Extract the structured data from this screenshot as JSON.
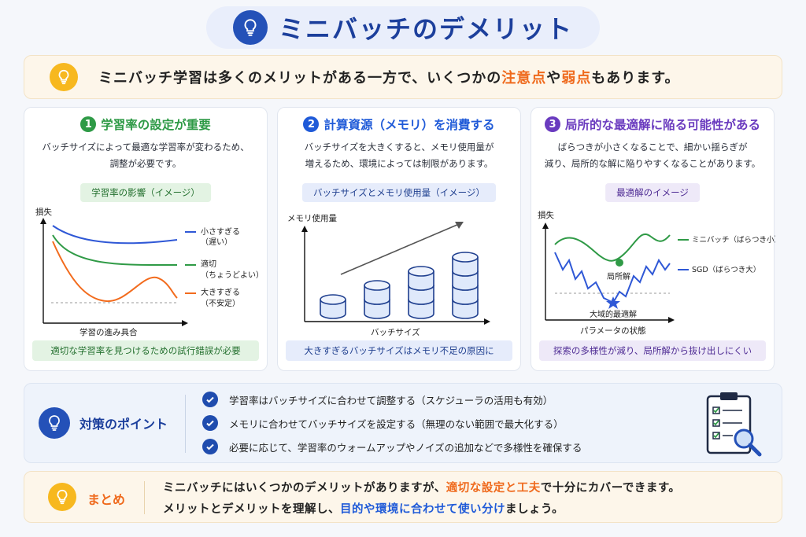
{
  "title": "ミニバッチのデメリット",
  "intro": {
    "prefix": "ミニバッチ学習は多くのメリットがある一方で、いくつかの",
    "hl1": "注意点",
    "mid": "や",
    "hl2": "弱点",
    "suffix": "もあります。"
  },
  "cards": [
    {
      "num": "1",
      "title": "学習率の設定が重要",
      "desc1": "バッチサイズによって最適な学習率が変わるため、",
      "desc2": "調整が必要です。",
      "chip": "学習率の影響（イメージ）",
      "foot": "適切な学習率を見つけるための試行錯誤が必要",
      "color": "#2e9a46",
      "chart": {
        "ylabel": "損失",
        "xlabel": "学習の進み具合",
        "series": [
          {
            "name1": "小さすぎる",
            "name2": "（遅い）",
            "color": "#2f58d6"
          },
          {
            "name1": "適切",
            "name2": "（ちょうどよい）",
            "color": "#2f9a46"
          },
          {
            "name1": "大きすぎる",
            "name2": "（不安定）",
            "color": "#f26b1d"
          }
        ]
      }
    },
    {
      "num": "2",
      "title": "計算資源（メモリ）を消費する",
      "desc1": "バッチサイズを大きくすると、メモリ使用量が",
      "desc2": "増えるため、環境によっては制限があります。",
      "chip": "バッチサイズとメモリ使用量（イメージ）",
      "foot": "大きすぎるバッチサイズはメモリ不足の原因に",
      "color": "#1f5ad8",
      "chart": {
        "ylabel": "メモリ使用量",
        "xlabel": "バッチサイズ",
        "stacks": [
          1,
          2,
          3,
          4
        ]
      }
    },
    {
      "num": "3",
      "title": "局所的な最適解に陥る可能性がある",
      "desc1": "ばらつきが小さくなることで、細かい揺らぎが",
      "desc2": "減り、局所的な解に陥りやすくなることがあります。",
      "chip": "最適解のイメージ",
      "foot": "探索の多様性が減り、局所解から抜け出しにくい",
      "color": "#6a3bbf",
      "chart": {
        "ylabel": "損失",
        "xlabel": "パラメータの状態",
        "local_label": "局所解",
        "global_label": "大域的最適解",
        "series": [
          {
            "name": "ミニバッチ（ばらつき小）",
            "color": "#2f9a46"
          },
          {
            "name": "SGD（ばらつき大）",
            "color": "#2f58d6"
          }
        ]
      }
    }
  ],
  "measures": {
    "title": "対策のポイント",
    "items": [
      "学習率はバッチサイズに合わせて調整する（スケジューラの活用も有効）",
      "メモリに合わせてバッチサイズを設定する（無理のない範囲で最大化する）",
      "必要に応じて、学習率のウォームアップやノイズの追加などで多様性を確保する"
    ]
  },
  "summary": {
    "title": "まとめ",
    "line1_prefix": "ミニバッチにはいくつかのデメリットがありますが、",
    "line1_hl": "適切な設定と工夫",
    "line1_suffix": "で十分にカバーできます。",
    "line2_prefix": "メリットとデメリットを理解し、",
    "line2_hl": "目的や環境に合わせて使い分け",
    "line2_suffix": "ましょう。"
  }
}
